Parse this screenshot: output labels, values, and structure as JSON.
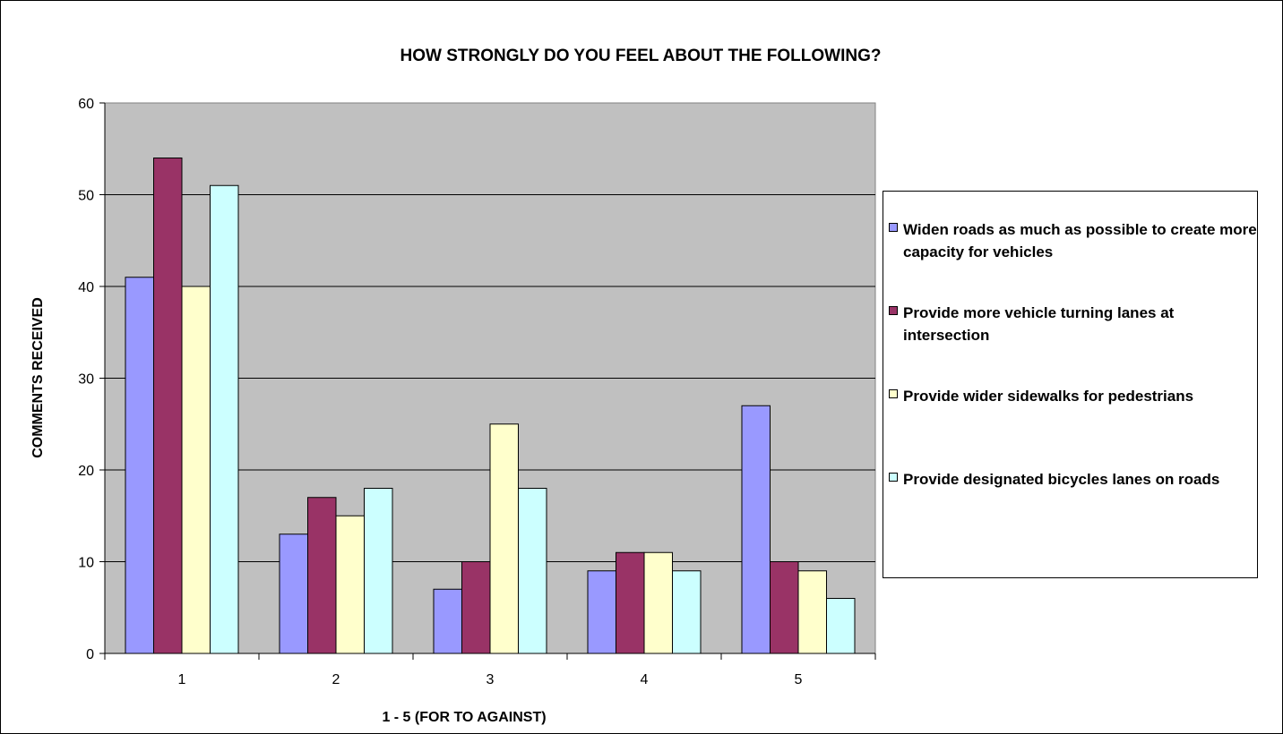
{
  "chart_data": {
    "type": "bar",
    "title": "HOW STRONGLY DO YOU FEEL ABOUT THE FOLLOWING?",
    "xlabel": "1 - 5 (FOR TO AGAINST)",
    "ylabel": "COMMENTS RECEIVED",
    "ylim": [
      0,
      60
    ],
    "yticks": [
      "0",
      "10",
      "20",
      "30",
      "40",
      "50",
      "60"
    ],
    "categories": [
      "1",
      "2",
      "3",
      "4",
      "5"
    ],
    "grid": true,
    "legend_position": "right",
    "plot_background": "#c0c0c0",
    "series": [
      {
        "name": "Widen roads as much as possible to create more capacity for vehicles",
        "color": "#9999ff",
        "values": [
          41,
          13,
          7,
          9,
          27
        ]
      },
      {
        "name": "Provide more vehicle turning lanes at intersection",
        "color": "#993366",
        "values": [
          54,
          17,
          10,
          11,
          10
        ]
      },
      {
        "name": "Provide wider sidewalks for pedestrians",
        "color": "#ffffcc",
        "values": [
          40,
          15,
          25,
          11,
          9
        ]
      },
      {
        "name": "Provide designated bicycles lanes on roads",
        "color": "#ccffff",
        "values": [
          51,
          18,
          18,
          9,
          6
        ]
      }
    ]
  }
}
